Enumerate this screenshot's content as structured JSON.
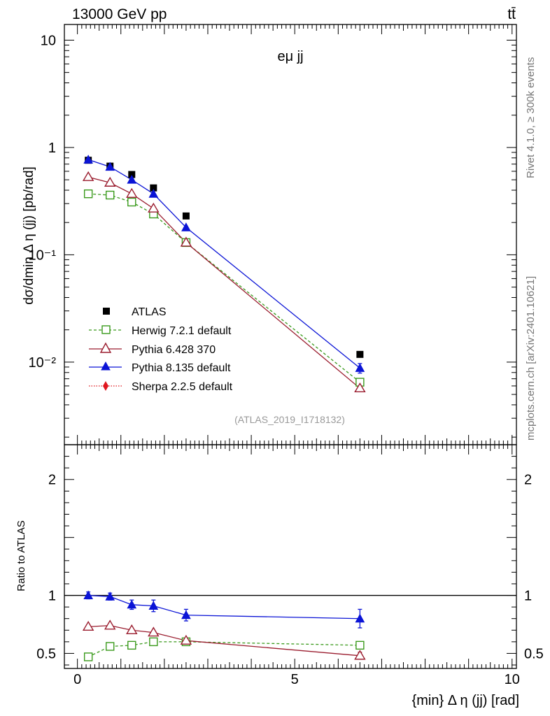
{
  "header": {
    "energy_label": "13000 GeV pp",
    "process_label": "tt̄",
    "panel_label": "eμ jj",
    "analysis_id": "(ATLAS_2019_I1718132)",
    "side_rivet": "Rivet 4.1.0, ≥ 300k events",
    "side_mcplots": "mcplots.cern.ch [arXiv:2401.10621]"
  },
  "chart_data": [
    {
      "type": "scatter",
      "yscale": "log",
      "xlabel": "{min} Δ η (jj) [rad]",
      "ylabel": "dσ/dmin Δ η (jj) [pb/rad]",
      "xlim": [
        -0.3,
        10.1
      ],
      "ylim": [
        0.0017,
        14
      ],
      "yticks": [
        {
          "value": 10,
          "label": "10"
        },
        {
          "value": 1,
          "label": "1"
        },
        {
          "value": 0.1,
          "label": "10⁻¹"
        },
        {
          "value": 0.01,
          "label": "10⁻²"
        }
      ],
      "x": [
        0.25,
        0.75,
        1.25,
        1.75,
        2.5,
        6.5
      ],
      "series": [
        {
          "name": "ATLAS",
          "color": "#000000",
          "marker": "square-filled",
          "line": "none",
          "values": [
            0.76,
            0.67,
            0.56,
            0.42,
            0.23,
            0.0118
          ]
        },
        {
          "name": "Herwig 7.2.1 default",
          "color": "#3a9a1c",
          "marker": "square-open",
          "line": "dashed",
          "values": [
            0.37,
            0.36,
            0.31,
            0.24,
            0.13,
            0.0065
          ]
        },
        {
          "name": "Pythia 6.428 370",
          "color": "#9a1c2e",
          "marker": "triangle-open",
          "line": "solid",
          "values": [
            0.53,
            0.47,
            0.37,
            0.27,
            0.13,
            0.0057
          ]
        },
        {
          "name": "Pythia 8.135 default",
          "color": "#0b14d6",
          "marker": "triangle-filled",
          "line": "solid",
          "values": [
            0.77,
            0.66,
            0.5,
            0.37,
            0.18,
            0.0088
          ],
          "errors": [
            0,
            0,
            0,
            0,
            0,
            0.0009
          ]
        },
        {
          "name": "Sherpa 2.2.5 default",
          "color": "#e0161e",
          "marker": "diamond-filled",
          "line": "dotted",
          "values": []
        }
      ]
    },
    {
      "type": "scatter",
      "xlabel": "{min} Δ η (jj) [rad]",
      "ylabel": "Ratio to ATLAS",
      "xlim": [
        -0.3,
        10.1
      ],
      "ylim": [
        0.37,
        2.3
      ],
      "xticks": [
        0,
        5,
        10
      ],
      "yticks": [
        0.5,
        1,
        2
      ],
      "reference_line": 1,
      "x": [
        0.25,
        0.75,
        1.25,
        1.75,
        2.5,
        6.5
      ],
      "series": [
        {
          "name": "Herwig 7.2.1 default",
          "color": "#3a9a1c",
          "marker": "square-open",
          "line": "dashed",
          "values": [
            0.47,
            0.56,
            0.57,
            0.6,
            0.6,
            0.57
          ],
          "errors": [
            0,
            0,
            0,
            0,
            0.01,
            0.03
          ]
        },
        {
          "name": "Pythia 6.428 370",
          "color": "#9a1c2e",
          "marker": "triangle-open",
          "line": "solid",
          "values": [
            0.73,
            0.74,
            0.7,
            0.68,
            0.61,
            0.48
          ],
          "errors": [
            0,
            0,
            0,
            0,
            0.01,
            0.03
          ]
        },
        {
          "name": "Pythia 8.135 default",
          "color": "#0b14d6",
          "marker": "triangle-filled",
          "line": "solid",
          "values": [
            1.0,
            0.99,
            0.92,
            0.91,
            0.83,
            0.8
          ],
          "errors": [
            0.03,
            0.03,
            0.04,
            0.05,
            0.05,
            0.08
          ]
        }
      ]
    }
  ]
}
